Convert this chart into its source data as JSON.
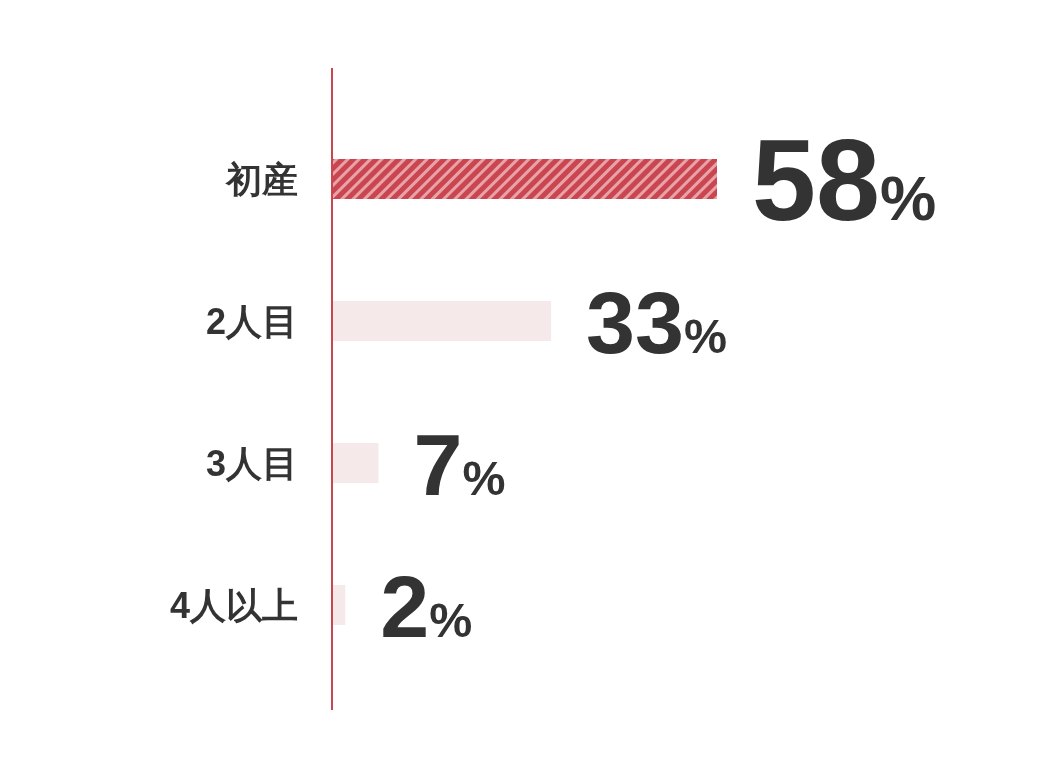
{
  "chart_data": {
    "type": "bar",
    "orientation": "horizontal",
    "categories": [
      "初産",
      "2人目",
      "3人目",
      "4人以上"
    ],
    "values": [
      58,
      33,
      7,
      2
    ],
    "colors": [
      "#c9454f",
      "#f6e9ea",
      "#f6e9ea",
      "#f6e9ea"
    ],
    "value_labels": [
      "58%",
      "33%",
      "7%",
      "2%"
    ]
  }
}
